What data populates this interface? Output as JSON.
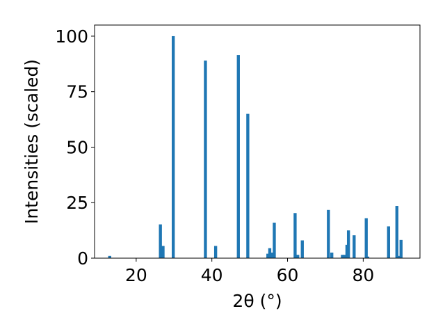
{
  "chart_data": {
    "type": "bar",
    "xlabel": "2θ (°)",
    "ylabel": "Intensities (scaled)",
    "xlim": [
      9,
      95
    ],
    "ylim": [
      0,
      105
    ],
    "x_ticks": [
      20,
      40,
      60,
      80
    ],
    "y_ticks": [
      0,
      25,
      50,
      75,
      100
    ],
    "grid": false,
    "bar_color": "#1f77b4",
    "bar_width": 0.8,
    "x": [
      13.0,
      26.4,
      27.1,
      29.8,
      38.3,
      41.0,
      47.0,
      49.5,
      54.8,
      55.3,
      55.9,
      56.5,
      62.0,
      62.7,
      63.9,
      70.8,
      71.7,
      74.5,
      75.0,
      75.7,
      76.1,
      77.6,
      80.8,
      81.2,
      86.7,
      88.9,
      89.3,
      90.0
    ],
    "values": [
      1.0,
      15.2,
      5.5,
      100.0,
      89.0,
      5.5,
      91.5,
      65.0,
      2.0,
      4.5,
      2.5,
      16.0,
      20.3,
      1.5,
      8.0,
      21.7,
      2.5,
      1.5,
      1.5,
      6.0,
      12.5,
      10.3,
      18.0,
      0.7,
      14.3,
      23.5,
      1.0,
      8.2
    ]
  }
}
